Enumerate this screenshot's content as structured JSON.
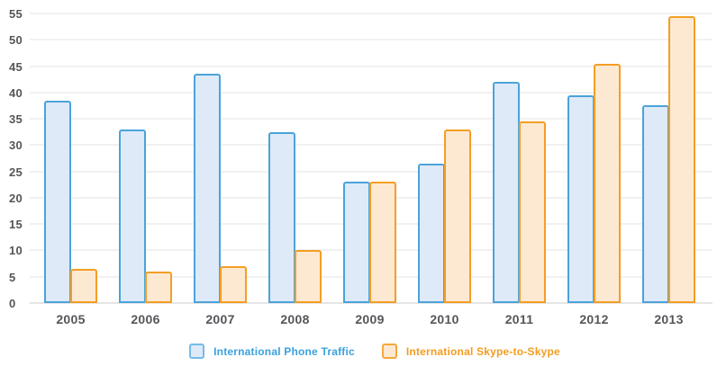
{
  "chart_data": {
    "type": "bar",
    "title": "",
    "xlabel": "",
    "ylabel": "",
    "categories": [
      "2005",
      "2006",
      "2007",
      "2008",
      "2009",
      "2010",
      "2011",
      "2012",
      "2013"
    ],
    "series": [
      {
        "name": "International Phone Traffic",
        "values": [
          38.5,
          33,
          43.5,
          32.5,
          23,
          26.5,
          42,
          39.5,
          37.5
        ],
        "fill": "#deeaf8",
        "stroke": "#4ba3db",
        "label_color": "#3aa1dc"
      },
      {
        "name": "International Skype-to-Skype",
        "values": [
          6.5,
          6,
          7,
          10,
          23,
          33,
          34.5,
          45.5,
          54.5
        ],
        "fill": "#fde9d2",
        "stroke": "#f49e23",
        "label_color": "#f39c1f"
      }
    ],
    "ylim": [
      0,
      55
    ],
    "yticks": [
      0,
      5,
      10,
      15,
      20,
      25,
      30,
      35,
      40,
      45,
      50,
      55
    ],
    "grid": "horizontal",
    "legend_position": "bottom",
    "colors": {
      "gridline": "#f1f1f1",
      "axis_text": "#54565a",
      "background": "#ffffff"
    }
  }
}
